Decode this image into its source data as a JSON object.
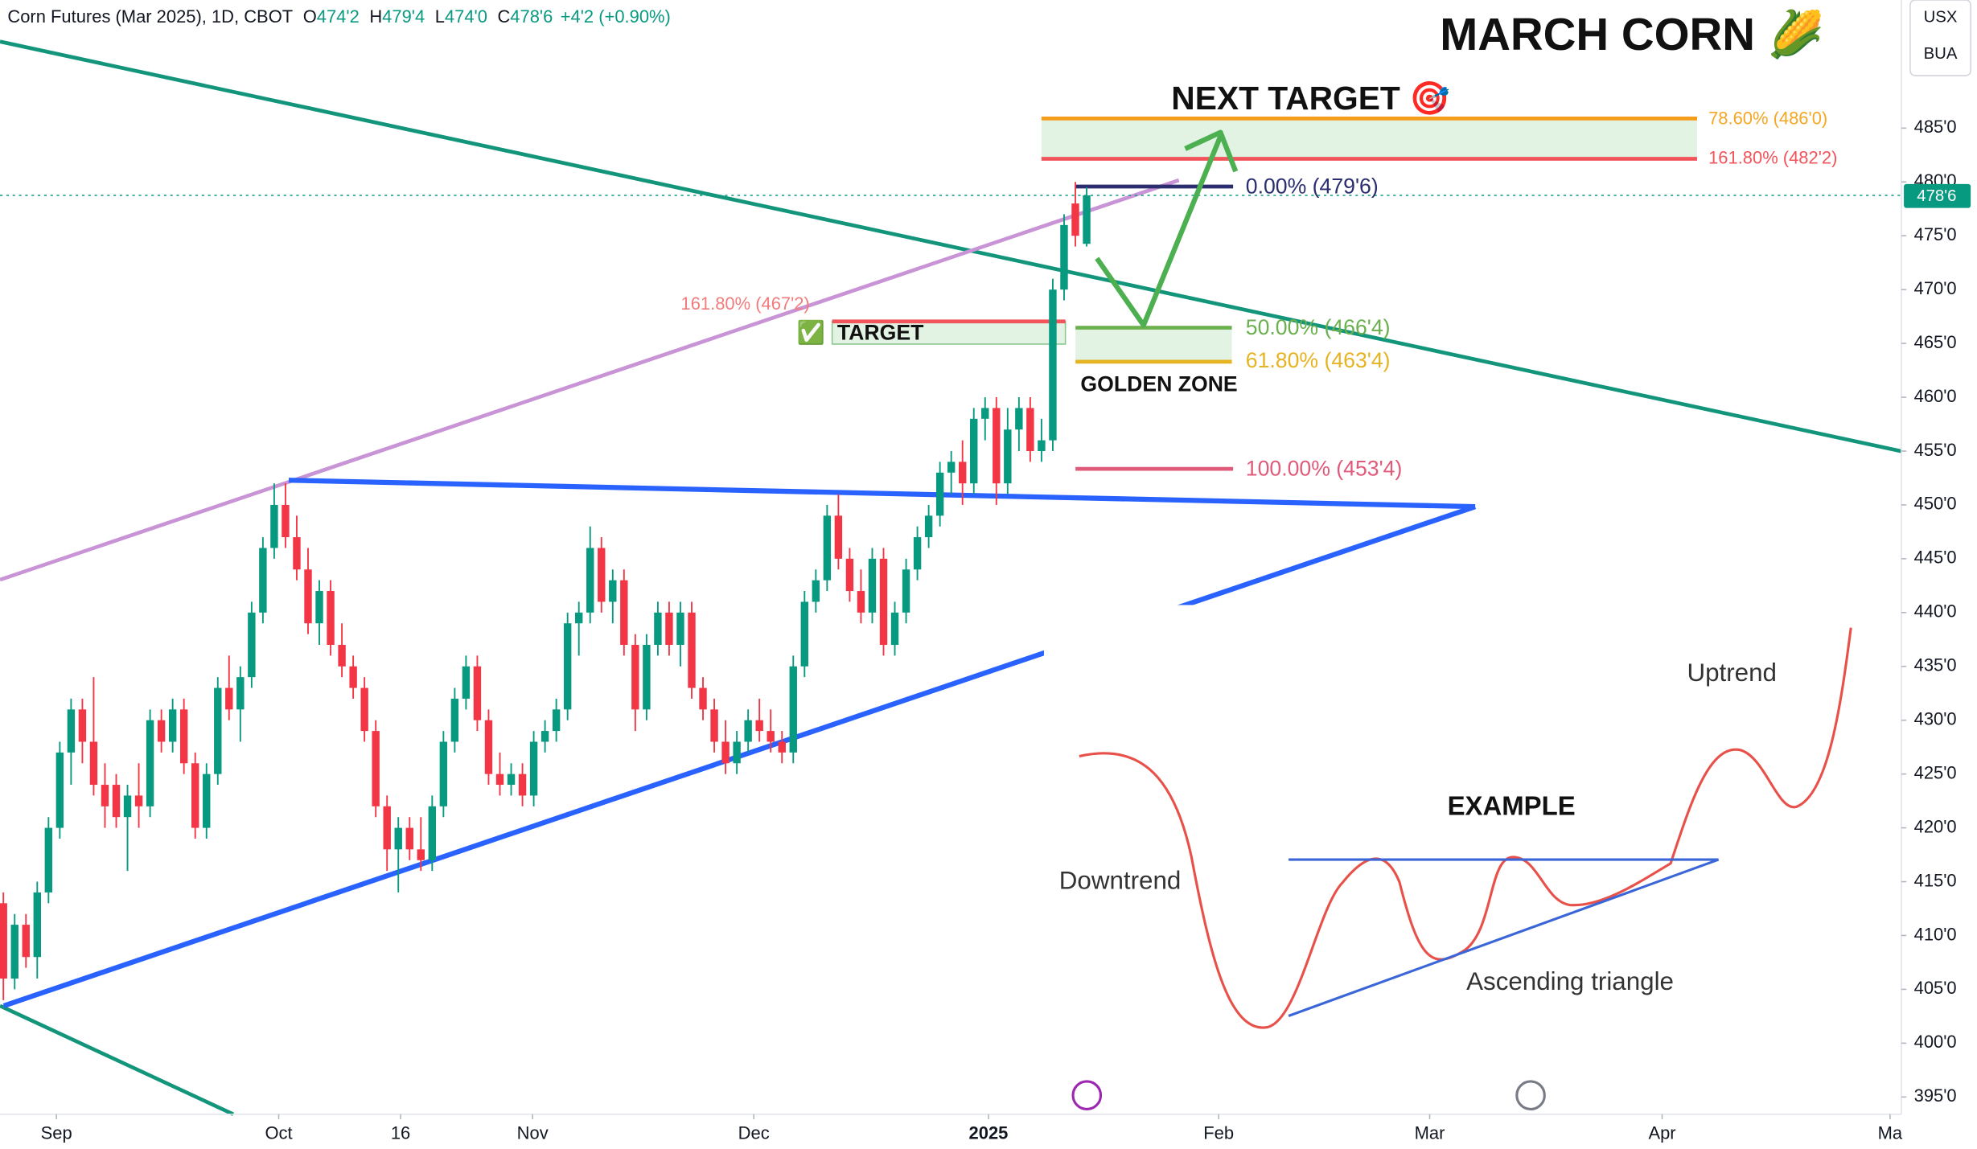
{
  "chart_data": {
    "type": "candlestick",
    "header": {
      "symbol": "Corn Futures (Mar 2025), 1D, CBOT",
      "ohlc": [
        {
          "key": "O",
          "value": "474'2"
        },
        {
          "key": "H",
          "value": "479'4"
        },
        {
          "key": "L",
          "value": "474'0"
        },
        {
          "key": "C",
          "value": "478'6"
        }
      ],
      "change": "+4'2 (+0.90%)"
    },
    "title": "MARCH CORN 🌽",
    "currency": "USX",
    "unit": "BUA",
    "annotations": {
      "next_target": "NEXT TARGET 🎯",
      "fib_786": "78.60% (486'0)",
      "fib_1618_upper": "161.80% (482'2)",
      "fib_0": "0.00% (479'6)",
      "fib_1618_lower": "161.80% (467'2)",
      "target_check": "✅",
      "target": "TARGET",
      "fib_50": "50.00% (466'4)",
      "fib_618": "61.80% (463'4)",
      "golden_zone": "GOLDEN ZONE",
      "fib_100": "100.00% (453'4)",
      "example": "EXAMPLE",
      "downtrend": "Downtrend",
      "uptrend": "Uptrend",
      "ascending_triangle": "Ascending triangle"
    },
    "up_color": "#089981",
    "down_color": "#f23645",
    "candles": [
      [
        413,
        414,
        404,
        406
      ],
      [
        406,
        412,
        405,
        411
      ],
      [
        411,
        412,
        407,
        408
      ],
      [
        408,
        415,
        406,
        414
      ],
      [
        414,
        421,
        413,
        420
      ],
      [
        420,
        428,
        419,
        427
      ],
      [
        427,
        432,
        424,
        431
      ],
      [
        431,
        432,
        426,
        428
      ],
      [
        428,
        434,
        423,
        424
      ],
      [
        424,
        426,
        420,
        422
      ],
      [
        424,
        425,
        420,
        421
      ],
      [
        421,
        424,
        416,
        423
      ],
      [
        423,
        426,
        420,
        422
      ],
      [
        422,
        431,
        421,
        430
      ],
      [
        430,
        431,
        427,
        428
      ],
      [
        428,
        432,
        427,
        431
      ],
      [
        431,
        432,
        425,
        426
      ],
      [
        426,
        427,
        419,
        420
      ],
      [
        420,
        426,
        419,
        425
      ],
      [
        425,
        434,
        424,
        433
      ],
      [
        433,
        436,
        430,
        431
      ],
      [
        431,
        435,
        428,
        434
      ],
      [
        434,
        441,
        433,
        440
      ],
      [
        440,
        447,
        439,
        446
      ],
      [
        446,
        452,
        445,
        450
      ],
      [
        450,
        452,
        446,
        447
      ],
      [
        447,
        449,
        443,
        444
      ],
      [
        444,
        446,
        438,
        439
      ],
      [
        439,
        443,
        437,
        442
      ],
      [
        442,
        443,
        436,
        437
      ],
      [
        437,
        439,
        434,
        435
      ],
      [
        435,
        436,
        432,
        433
      ],
      [
        433,
        434,
        428,
        429
      ],
      [
        429,
        430,
        421,
        422
      ],
      [
        422,
        423,
        416,
        418
      ],
      [
        418,
        421,
        414,
        420
      ],
      [
        420,
        421,
        417,
        418
      ],
      [
        418,
        421,
        416,
        417
      ],
      [
        417,
        423,
        416,
        422
      ],
      [
        422,
        429,
        421,
        428
      ],
      [
        428,
        433,
        427,
        432
      ],
      [
        432,
        436,
        431,
        435
      ],
      [
        435,
        436,
        429,
        430
      ],
      [
        430,
        431,
        424,
        425
      ],
      [
        425,
        427,
        423,
        424
      ],
      [
        424,
        426,
        423,
        425
      ],
      [
        425,
        426,
        422,
        423
      ],
      [
        423,
        429,
        422,
        428
      ],
      [
        428,
        430,
        427,
        429
      ],
      [
        429,
        432,
        428,
        431
      ],
      [
        431,
        440,
        430,
        439
      ],
      [
        439,
        441,
        436,
        440
      ],
      [
        440,
        448,
        439,
        446
      ],
      [
        446,
        447,
        440,
        441
      ],
      [
        441,
        444,
        439,
        443
      ],
      [
        443,
        444,
        436,
        437
      ],
      [
        437,
        438,
        429,
        431
      ],
      [
        431,
        438,
        430,
        437
      ],
      [
        437,
        441,
        436,
        440
      ],
      [
        440,
        441,
        436,
        437
      ],
      [
        437,
        441,
        435,
        440
      ],
      [
        440,
        441,
        432,
        433
      ],
      [
        433,
        434,
        430,
        431
      ],
      [
        431,
        432,
        427,
        428
      ],
      [
        428,
        430,
        425,
        426
      ],
      [
        426,
        429,
        425,
        428
      ],
      [
        428,
        431,
        427,
        430
      ],
      [
        430,
        432,
        428,
        429
      ],
      [
        429,
        431,
        427,
        428
      ],
      [
        428,
        429,
        426,
        427
      ],
      [
        427,
        436,
        426,
        435
      ],
      [
        435,
        442,
        434,
        441
      ],
      [
        441,
        444,
        440,
        443
      ],
      [
        443,
        450,
        442,
        449
      ],
      [
        449,
        451,
        444,
        445
      ],
      [
        445,
        446,
        441,
        442
      ],
      [
        442,
        444,
        439,
        440
      ],
      [
        440,
        446,
        439,
        445
      ],
      [
        445,
        446,
        436,
        437
      ],
      [
        437,
        441,
        436,
        440
      ],
      [
        440,
        445,
        439,
        444
      ],
      [
        444,
        448,
        443,
        447
      ],
      [
        447,
        450,
        446,
        449
      ],
      [
        449,
        454,
        448,
        453
      ],
      [
        453,
        455,
        451,
        454
      ],
      [
        454,
        456,
        450,
        452
      ],
      [
        452,
        459,
        451,
        458
      ],
      [
        458,
        460,
        456,
        459
      ],
      [
        459,
        460,
        450,
        452
      ],
      [
        452,
        459,
        451,
        457
      ],
      [
        457,
        460,
        455,
        459
      ],
      [
        459,
        460,
        454,
        455
      ],
      [
        455,
        458,
        454,
        456
      ],
      [
        456,
        471,
        455,
        470
      ],
      [
        470,
        477,
        469,
        476
      ],
      [
        478,
        480,
        474,
        475
      ],
      [
        474.25,
        479.5,
        474,
        478.75
      ]
    ],
    "xlim": [
      -0.3,
      168.2
    ],
    "xticks": [
      {
        "value": 4.7,
        "label": "Sep"
      },
      {
        "value": 24.4,
        "label": "Oct"
      },
      {
        "value": 35.2,
        "label": "16"
      },
      {
        "value": 46.9,
        "label": "Nov"
      },
      {
        "value": 66.5,
        "label": "Dec"
      },
      {
        "value": 87.3,
        "label": "2025"
      },
      {
        "value": 107.7,
        "label": "Feb"
      },
      {
        "value": 126.4,
        "label": "Mar"
      },
      {
        "value": 147.0,
        "label": "Apr"
      },
      {
        "value": 167.2,
        "label": "Ma"
      }
    ],
    "ylim": [
      393.4,
      496.9
    ],
    "yticks": [
      {
        "value": 395,
        "label": "395'0"
      },
      {
        "value": 400,
        "label": "400'0"
      },
      {
        "value": 405,
        "label": "405'0"
      },
      {
        "value": 410,
        "label": "410'0"
      },
      {
        "value": 415,
        "label": "415'0"
      },
      {
        "value": 420,
        "label": "420'0"
      },
      {
        "value": 425,
        "label": "425'0"
      },
      {
        "value": 430,
        "label": "430'0"
      },
      {
        "value": 435,
        "label": "435'0"
      },
      {
        "value": 440,
        "label": "440'0"
      },
      {
        "value": 445,
        "label": "445'0"
      },
      {
        "value": 450,
        "label": "450'0"
      },
      {
        "value": 455,
        "label": "455'0"
      },
      {
        "value": 460,
        "label": "460'0"
      },
      {
        "value": 465,
        "label": "465'0"
      },
      {
        "value": 470,
        "label": "470'0"
      },
      {
        "value": 475,
        "label": "475'0"
      },
      {
        "value": 480,
        "label": "480'0"
      },
      {
        "value": 485,
        "label": "485'0"
      }
    ]
  }
}
